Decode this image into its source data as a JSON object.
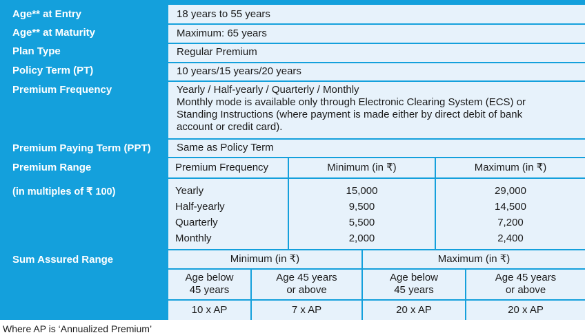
{
  "rows": {
    "age_entry": {
      "label": "Age** at Entry",
      "value": "18 years to 55 years"
    },
    "age_maturity": {
      "label": "Age** at Maturity",
      "value": "Maximum: 65 years"
    },
    "plan_type": {
      "label": "Plan Type",
      "value": "Regular Premium"
    },
    "policy_term": {
      "label": "Policy Term (PT)",
      "value": "10 years/15 years/20 years"
    },
    "premium_frequency": {
      "label": "Premium Frequency",
      "value_line1": "Yearly / Half-yearly / Quarterly / Monthly",
      "value_line2": "Monthly mode is available only through Electronic Clearing System (ECS) or",
      "value_line3": "Standing Instructions (where payment is made either by direct debit of bank",
      "value_line4": "account or credit card)."
    },
    "ppt": {
      "label": "Premium Paying Term (PPT)",
      "value": "Same as Policy Term"
    }
  },
  "premium_range": {
    "label": "Premium Range",
    "sublabel": "(in multiples of ₹ 100)",
    "headers": [
      "Premium Frequency",
      "Minimum (in ₹)",
      "Maximum (in ₹)"
    ],
    "frequencies": [
      "Yearly",
      "Half-yearly",
      "Quarterly",
      "Monthly"
    ],
    "minimum": [
      "15,000",
      "9,500",
      "5,500",
      "2,000"
    ],
    "maximum": [
      "29,000",
      "14,500",
      "7,200",
      "2,400"
    ]
  },
  "sum_assured": {
    "label": "Sum Assured Range",
    "min_header": "Minimum (in ₹)",
    "max_header": "Maximum (in ₹)",
    "sub_headers": [
      [
        "Age below",
        "45 years"
      ],
      [
        "Age 45 years",
        "or above"
      ],
      [
        "Age below",
        "45 years"
      ],
      [
        "Age 45 years",
        "or above"
      ]
    ],
    "values": [
      "10 x AP",
      "7 x AP",
      "20 x AP",
      "20 x AP"
    ]
  },
  "footnote": "Where AP is ‘Annualized Premium’"
}
